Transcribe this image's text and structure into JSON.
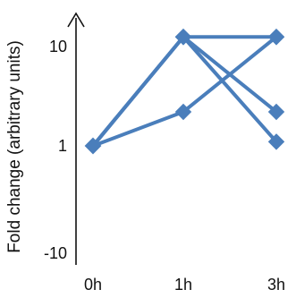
{
  "chart_data": {
    "type": "line",
    "title": "",
    "xlabel": "",
    "ylabel": "Fold change (arbitrary units)",
    "categories": [
      "0h",
      "1h",
      "3h"
    ],
    "yticks": [
      "10",
      "1",
      "-10"
    ],
    "series": [
      {
        "values": [
          1,
          12.5,
          12.5
        ]
      },
      {
        "values": [
          1,
          12.5,
          1.1
        ]
      },
      {
        "values": [
          1,
          12.5,
          2.2
        ]
      },
      {
        "values": [
          1,
          2.2,
          12.5
        ]
      }
    ],
    "grid": false,
    "legend": "none",
    "color": "#4a7ebb"
  }
}
